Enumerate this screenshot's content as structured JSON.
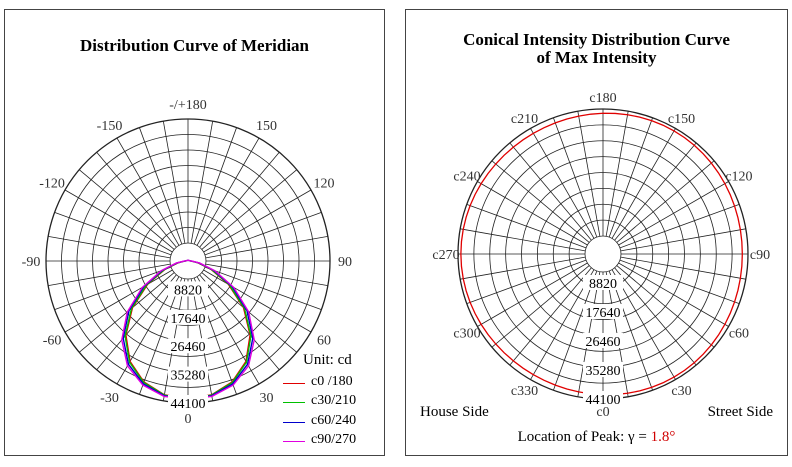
{
  "chart_data": [
    {
      "type": "polar",
      "title": "Distribution Curve of  Meridian",
      "angle_labels": [
        {
          "deg": 0,
          "text": "0"
        },
        {
          "deg": 30,
          "text": "30"
        },
        {
          "deg": 60,
          "text": "60"
        },
        {
          "deg": 90,
          "text": "90"
        },
        {
          "deg": 120,
          "text": "120"
        },
        {
          "deg": 150,
          "text": "150"
        },
        {
          "deg": 180,
          "text": "-/+180"
        },
        {
          "deg": -150,
          "text": "-150"
        },
        {
          "deg": -120,
          "text": "-120"
        },
        {
          "deg": -90,
          "text": "-90"
        },
        {
          "deg": -60,
          "text": "-60"
        },
        {
          "deg": -30,
          "text": "-30"
        }
      ],
      "radial_ticks": [
        "8820",
        "17640",
        "26460",
        "35280",
        "44100"
      ],
      "rmax": 44100,
      "unit_label": "Unit: cd",
      "series": [
        {
          "name": "c0 /180",
          "color": "#e00000",
          "angles": [
            0,
            10,
            20,
            30,
            40,
            50,
            60,
            70,
            80,
            90,
            100,
            110,
            120,
            130,
            140,
            150,
            160,
            170,
            180
          ],
          "values": [
            42800,
            42200,
            40000,
            36000,
            30000,
            22500,
            14500,
            7600,
            3000,
            900,
            450,
            380,
            320,
            290,
            280,
            270,
            260,
            260,
            260
          ]
        },
        {
          "name": "c30/210",
          "color": "#00c000",
          "angles": [
            0,
            10,
            20,
            30,
            40,
            50,
            60,
            70,
            80,
            90,
            100,
            110,
            120,
            130,
            140,
            150,
            160,
            170,
            180
          ],
          "values": [
            42800,
            42300,
            40200,
            36300,
            30400,
            22900,
            14900,
            7900,
            3200,
            950,
            460,
            380,
            320,
            290,
            280,
            270,
            260,
            260,
            260
          ]
        },
        {
          "name": "c60/240",
          "color": "#0000cc",
          "angles": [
            0,
            10,
            20,
            30,
            40,
            50,
            60,
            70,
            80,
            90,
            100,
            110,
            120,
            130,
            140,
            150,
            160,
            170,
            180
          ],
          "values": [
            42800,
            42500,
            40600,
            37000,
            31300,
            23900,
            15800,
            8500,
            3500,
            1000,
            470,
            390,
            320,
            290,
            280,
            270,
            260,
            260,
            260
          ]
        },
        {
          "name": "c90/270",
          "color": "#e000e0",
          "angles": [
            0,
            10,
            20,
            30,
            40,
            50,
            60,
            70,
            80,
            90,
            100,
            110,
            120,
            130,
            140,
            150,
            160,
            170,
            180
          ],
          "values": [
            42800,
            42700,
            41000,
            37600,
            32000,
            24600,
            16400,
            8900,
            3700,
            1050,
            480,
            390,
            320,
            290,
            280,
            270,
            260,
            260,
            260
          ]
        }
      ]
    },
    {
      "type": "polar",
      "title_line1": "Conical Intensity Distribution Curve",
      "title_line2": "of  Max Intensity",
      "angle_labels": [
        {
          "deg": 0,
          "text": "c0"
        },
        {
          "deg": 30,
          "text": "c30"
        },
        {
          "deg": 60,
          "text": "c60"
        },
        {
          "deg": 90,
          "text": "c90"
        },
        {
          "deg": 120,
          "text": "c120"
        },
        {
          "deg": 150,
          "text": "c150"
        },
        {
          "deg": 180,
          "text": "c180"
        },
        {
          "deg": 210,
          "text": "c210"
        },
        {
          "deg": 240,
          "text": "c240"
        },
        {
          "deg": 270,
          "text": "c270"
        },
        {
          "deg": 300,
          "text": "c300"
        },
        {
          "deg": 330,
          "text": "c330"
        }
      ],
      "radial_ticks": [
        "8820",
        "17640",
        "26460",
        "35280",
        "44100"
      ],
      "rmax": 44100,
      "series": [
        {
          "name": "Max Intensity",
          "color": "#e00000",
          "constant_value": 42800
        }
      ],
      "side_left": "House Side",
      "side_right": "Street Side",
      "peak_label": "Location of Peak:  γ  =",
      "peak_value": "1.8°"
    }
  ]
}
